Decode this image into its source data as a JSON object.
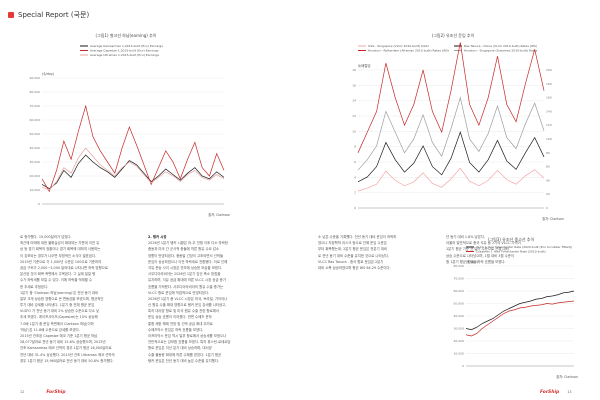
{
  "header": {
    "title": "Special Report (국문)"
  },
  "chart_left": {
    "chart_data": {
      "type": "line",
      "title": "(그림1) 벌크선 하납(earning) 추이",
      "ylabel": "($/day)",
      "source": "출처: Clarkson",
      "ylim": [
        0,
        90000
      ],
      "yticks": [
        0,
        10000,
        20000,
        30000,
        40000,
        50000,
        60000,
        70000,
        80000,
        90000
      ],
      "ytick_labels": [
        "0",
        "10,000",
        "20,000",
        "30,000",
        "40,000",
        "50,000",
        "60,000",
        "70,000",
        "80,000",
        "90,000"
      ],
      "xrange": [
        0,
        100
      ],
      "series": [
        {
          "name": "Average Kamsarmax 1,2015-built (Eco) Earnings",
          "color": "#1a1a1a",
          "x": [
            0,
            4,
            8,
            12,
            16,
            20,
            24,
            28,
            32,
            36,
            40,
            44,
            48,
            52,
            56,
            60,
            64,
            68,
            72,
            76,
            80,
            84,
            88,
            92,
            96,
            100
          ],
          "y": [
            14000,
            11000,
            15000,
            24000,
            19000,
            29000,
            35000,
            30000,
            26000,
            23000,
            19000,
            25000,
            31000,
            28000,
            22000,
            16000,
            20000,
            25000,
            21000,
            17000,
            22000,
            26000,
            20000,
            18000,
            23000,
            19000
          ]
        },
        {
          "name": "Average Capesize 1,2015-built (Eco) Earnings",
          "color": "#c62828",
          "x": [
            0,
            4,
            8,
            12,
            16,
            20,
            24,
            28,
            32,
            36,
            40,
            44,
            48,
            52,
            56,
            60,
            64,
            68,
            72,
            76,
            80,
            84,
            88,
            92,
            96,
            100
          ],
          "y": [
            18000,
            9000,
            24000,
            45000,
            32000,
            52000,
            70000,
            48000,
            38000,
            30000,
            22000,
            40000,
            55000,
            42000,
            28000,
            14000,
            26000,
            38000,
            30000,
            18000,
            32000,
            44000,
            26000,
            20000,
            36000,
            24000
          ]
        },
        {
          "name": "Average Ultramax 1,2015-built (Eco) Earnings",
          "color": "#e8a0a0",
          "x": [
            0,
            4,
            8,
            12,
            16,
            20,
            24,
            28,
            32,
            36,
            40,
            44,
            48,
            52,
            56,
            60,
            64,
            68,
            72,
            76,
            80,
            84,
            88,
            92,
            96,
            100
          ],
          "y": [
            12000,
            10000,
            16000,
            26000,
            22000,
            33000,
            40000,
            34000,
            28000,
            24000,
            20000,
            26000,
            30000,
            27000,
            21000,
            15000,
            19000,
            23000,
            20000,
            16000,
            21000,
            24000,
            19000,
            17000,
            21000,
            18000
          ]
        }
      ]
    }
  },
  "chart_right": {
    "chart_data": {
      "type": "line",
      "title": "(그림2) 유조선 운임 추이",
      "ylabel": "$/배럴당",
      "source": "출처: Clarkson",
      "ylim": [
        0,
        18
      ],
      "yticks": [
        0,
        2,
        4,
        6,
        8,
        10,
        12,
        14,
        16,
        18
      ],
      "ytick_labels": [
        "0",
        "2",
        "4",
        "6",
        "8",
        "10",
        "12",
        "14",
        "16",
        "18"
      ],
      "y2lim": [
        0,
        200
      ],
      "y2ticks": [
        0,
        20,
        40,
        60,
        80,
        100,
        120,
        140,
        160,
        180,
        200
      ],
      "y2tick_labels": [
        "0",
        "20",
        "40",
        "60",
        "80",
        "100",
        "120",
        "140",
        "160",
        "180",
        "200"
      ],
      "xrange": [
        0,
        100
      ],
      "series": [
        {
          "name": "USG - Singapore (VLCC 2010-built) $/bbl",
          "color": "#f4a6a6",
          "x": [
            0,
            5,
            10,
            15,
            20,
            25,
            30,
            35,
            40,
            45,
            50,
            55,
            60,
            65,
            70,
            75,
            80,
            85,
            90,
            95,
            100
          ],
          "y": [
            2.2,
            2.6,
            3.1,
            4.8,
            3.6,
            2.9,
            3.4,
            4.6,
            3.2,
            2.7,
            3.8,
            5.2,
            3.5,
            2.9,
            3.6,
            4.9,
            3.7,
            3.1,
            4.2,
            5.0,
            3.9
          ]
        },
        {
          "name": "Ras Tanura - China (VLCC 2010-built) Rates (WS)",
          "color": "#1a1a1a",
          "x": [
            0,
            5,
            10,
            15,
            20,
            25,
            30,
            35,
            40,
            45,
            50,
            55,
            60,
            65,
            70,
            75,
            80,
            85,
            90,
            95,
            100
          ],
          "y": [
            38,
            45,
            60,
            95,
            70,
            52,
            65,
            90,
            60,
            48,
            72,
            110,
            66,
            52,
            70,
            98,
            68,
            56,
            80,
            102,
            74
          ]
        },
        {
          "name": "Houston - Rotterdam (Aframax 2010-built) Rates (WS)",
          "color": "#c62828",
          "x": [
            0,
            5,
            10,
            15,
            20,
            25,
            30,
            35,
            40,
            45,
            50,
            55,
            60,
            65,
            70,
            75,
            80,
            85,
            90,
            95,
            100
          ],
          "y": [
            80,
            110,
            140,
            210,
            160,
            120,
            150,
            200,
            140,
            110,
            170,
            240,
            150,
            120,
            160,
            220,
            150,
            125,
            180,
            230,
            170
          ]
        },
        {
          "name": "Houston - Singapore (Suezmax 2010-built) Rates",
          "color": "#9e9e9e",
          "x": [
            0,
            5,
            10,
            15,
            20,
            25,
            30,
            35,
            40,
            45,
            50,
            55,
            60,
            65,
            70,
            75,
            80,
            85,
            90,
            95,
            100
          ],
          "y": [
            55,
            70,
            90,
            140,
            110,
            80,
            100,
            135,
            95,
            75,
            115,
            160,
            100,
            82,
            108,
            148,
            102,
            86,
            122,
            152,
            112
          ]
        }
      ]
    }
  },
  "chart_lower": {
    "chart_data": {
      "type": "line",
      "title": "(그림3) 유조선 중고선 추이",
      "ylabel": "($/day)",
      "source": "출처: Clarkson",
      "ylim": [
        0,
        80000
      ],
      "yticks": [
        0,
        10000,
        20000,
        30000,
        40000,
        50000,
        60000,
        70000,
        80000
      ],
      "ytick_labels": [
        "0",
        "10,000",
        "20,000",
        "30,000",
        "40,000",
        "50,000",
        "60,000",
        "70,000",
        "80,000"
      ],
      "xrange": [
        0,
        100
      ],
      "series": [
        {
          "name": "VLCC 1 Year Timecharter Rate (2020-built (Eco Scrubber Fitted))",
          "color": "#1a1a1a",
          "x": [
            0,
            5,
            10,
            15,
            20,
            25,
            30,
            35,
            40,
            45,
            50,
            55,
            60,
            65,
            70,
            75,
            80,
            85,
            90,
            95,
            100
          ],
          "y": [
            30000,
            29000,
            31000,
            34000,
            36000,
            38000,
            41000,
            44000,
            46000,
            48000,
            50000,
            51000,
            52000,
            53500,
            54000,
            55500,
            56000,
            57000,
            58500,
            59000,
            60000
          ]
        },
        {
          "name": "Suezmax 1 Year Timecharter Rate (2010-built)",
          "color": "#c62828",
          "x": [
            0,
            5,
            10,
            15,
            20,
            25,
            30,
            35,
            40,
            45,
            50,
            55,
            60,
            65,
            70,
            75,
            80,
            85,
            90,
            95,
            100
          ],
          "y": [
            25000,
            24000,
            26000,
            30000,
            33000,
            36000,
            39000,
            42000,
            44000,
            45000,
            46500,
            47000,
            48000,
            48500,
            49000,
            50000,
            49500,
            50500,
            51000,
            51500,
            52000
          ]
        }
      ]
    }
  },
  "col1": {
    "lines": [
      "로 증가했다. 15,000달러가 넘었다.",
      "최근에 미래에 대한 불확실성이 확대되는 가운데 이전 유",
      "상 등 경기 회복의 정황이나 경기 회복에 대하여 사용하는",
      "이 강조되는 경우가 나오면 부정적인 소식이 발표된다.",
      "2019년 기준으로 가 1,000년 수준은 100으로 기준하여",
      "공급 구조가 2,000~3,000 달러대로 나타나면 하락 방향으로",
      "분산된 것이 회복 측면에서 주목된다. 그 실제 일일 평",
      "수가 하락세를 보일 수 있다. 이에 하락을 억제할 수",
      "한 추세로 추정된다.",
      "1분기 중 'Clarkson 하납(earning)'은 전년 동기 대비",
      "일부 크게 상승한 영향으로 큰 변동성을 보였으며, 평균적인",
      "투기 대비 강세를 나타냈다. 1분기 중 전체 평균 운임",
      "VLSFO 가 전년 동기 대비 2% 상승한 수준으로 다소 낮",
      "추세 보였다. 케이프사이즈(Capesize)는 10% 상승해",
      "7.0배 1분기 중 운임 측면에서 Clarkson 하납(이하",
      "'하납')은 11.8배 수준으로 강세를 보였다.",
      "2015년 건조된 Capesize 에코 기준 1분기 평균 하납",
      "28,077달러로 전년 동기 대비 15.6% 상승했으며, 2015년",
      "건조 Kamsarmax 에코 선박의 경우 1분기 평균 16,000달러로",
      "전년 대비 31.4% 상승했다. 2015년 건조 Ultramax 에코 선박의",
      "경우 1분기 평균 15,960달러로 전년 동기 대비 50.8% 증가했다."
    ]
  },
  "col2": {
    "lines": [
      "2. 탱커 시장",
      "2026년 1분기 탱커 시황은 러-우 전쟁 이후 다소 하락한",
      "중동과 미국 간 군사적 충돌에 따른 원유 수요 감소",
      "영향이 반영되었다. 중동발 긴장이 고조되면서 선박들",
      "운임이 상승하였으나 이전 하락세로 전환됐다. 이로 인해",
      "석유 운송 사이 시장은 연초에 상승한 모습을 보였다.",
      "사우디아라비아는 2026년 1분기 감산 축소 방침을",
      "유지하며, 석유 공급 확대에 따른 VLCC 시장 공급 증가",
      "흐름을 가져왔다. 사우디아라비아의 원유 수출 증가는",
      "VLCC 항로 운임에 직접적으로 반영되었다.",
      "2026년 1분기 중 VLCC 시장은 미국, 브라질, 가이아나",
      "산 원유 수출 확대 영향으로 탱커 운임 강세를 나타냈고,",
      "특히 대서양 항로 및 미국 원유 수출 관련 항로에서",
      "운임 상승 흐름이 이어졌다. 반면 수에즈 운하",
      "통항 제한 해제 전망 및 선박 공급 확대 우려로",
      "수에즈막스 운임은 하락 흐름을 보였다.",
      "아프라막스 운임 역시 일부 항로에서 상승세를 보였으나",
      "전반적으로는 강보합 흐름을 보였다. 특히 휴스턴-로테르담",
      "항로 운임은 지난 분기 대비 상승하며, 대서양",
      "수출 물동량 확대에 따른 수혜를 받았다. 1분기 평균",
      "탱커 운임은 전년 동기 대비 높은 수준을 유지했다."
    ]
  },
  "col3": {
    "lines": [
      "소 낮은 수준을 기록했다. 전년 동기 대비 운임이 하락하",
      "였으나 지정학적 리스크 등으로 인해 운임 수준은",
      "부터 회복했는데, 2분기 평균 운임은 전분기 대비",
      "로 전년 동기 대비 수준을 유지한 것으로 나타났다.",
      "VLCC Ras Tanura - 중국 항로 운임은 2분기",
      "대비 소폭 상승하였으며 평균 WS 64.29 수준이다."
    ]
  },
  "col4": {
    "lines": [
      "년 동기 대비 1.8% 낮았다.",
      "아울러 일반적으로 중국 석유 중 2기의 VLCC 가격이",
      "1분기 평균 기준 전 달러 수준으로 전월 대비",
      "상승 수준으로 나타났으며, 1월 대비 3월 수준이",
      "월 1분기 평균 운임은 하락 흐름을 보였다."
    ]
  },
  "footer": {
    "left_page": "12",
    "right_page": "13",
    "brand": "ForShip"
  }
}
